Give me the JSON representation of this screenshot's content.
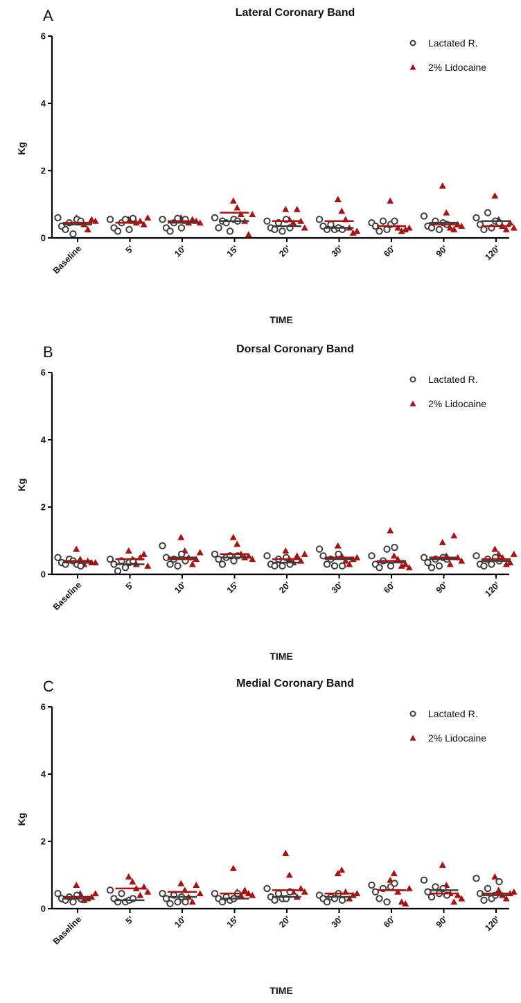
{
  "colors": {
    "lactated": "#3d3d3d",
    "lidocaine": "#aa1111",
    "axis": "#000000"
  },
  "chart_data": [
    {
      "type": "scatter",
      "panel_letter": "A",
      "title": "Lateral Coronary Band",
      "xlabel": "TIME",
      "ylabel": "Kg",
      "ylim": [
        0,
        6
      ],
      "yticks": [
        "0",
        "2",
        "4",
        "6"
      ],
      "categories": [
        "Baseline",
        "5'",
        "10'",
        "15'",
        "20'",
        "30'",
        "60'",
        "90'",
        "120'"
      ],
      "legend": {
        "position": "top-right",
        "marker_circle": "circle-icon",
        "marker_triangle": "triangle-icon"
      },
      "series": [
        {
          "name": "Lactated R.",
          "marker": "open-circle",
          "means": [
            0.4,
            0.45,
            0.45,
            0.5,
            0.35,
            0.3,
            0.35,
            0.45,
            0.5
          ],
          "points": [
            [
              0.6,
              0.35,
              0.25,
              0.45,
              0.12,
              0.55,
              0.5
            ],
            [
              0.55,
              0.3,
              0.2,
              0.45,
              0.55,
              0.25,
              0.58
            ],
            [
              0.55,
              0.3,
              0.2,
              0.45,
              0.58,
              0.3,
              0.55
            ],
            [
              0.6,
              0.3,
              0.5,
              0.45,
              0.2,
              0.55,
              0.5
            ],
            [
              0.5,
              0.3,
              0.25,
              0.45,
              0.2,
              0.55,
              0.3
            ],
            [
              0.55,
              0.35,
              0.25,
              0.4,
              0.25,
              0.3,
              0.25
            ],
            [
              0.45,
              0.35,
              0.2,
              0.5,
              0.25,
              0.4,
              0.5
            ],
            [
              0.65,
              0.35,
              0.3,
              0.5,
              0.25,
              0.45,
              0.4
            ],
            [
              0.6,
              0.4,
              0.25,
              0.75,
              0.3,
              0.5,
              0.45
            ]
          ]
        },
        {
          "name": "2% Lidocaine",
          "marker": "filled-triangle",
          "means": [
            0.45,
            0.45,
            0.5,
            0.75,
            0.5,
            0.5,
            0.35,
            0.4,
            0.35
          ],
          "points": [
            [
              0.6,
              0.45,
              0.4,
              0.25,
              0.55,
              0.5
            ],
            [
              0.55,
              0.5,
              0.45,
              0.5,
              0.4,
              0.6
            ],
            [
              0.6,
              0.5,
              0.45,
              0.55,
              0.5,
              0.45
            ],
            [
              1.1,
              0.9,
              0.7,
              0.5,
              0.1,
              0.7
            ],
            [
              0.85,
              0.55,
              0.45,
              0.85,
              0.5,
              0.3
            ],
            [
              1.15,
              0.8,
              0.55,
              0.3,
              0.15,
              0.2
            ],
            [
              1.1,
              0.5,
              0.3,
              0.2,
              0.25,
              0.3
            ],
            [
              1.55,
              0.75,
              0.3,
              0.25,
              0.4,
              0.35
            ],
            [
              1.25,
              0.55,
              0.35,
              0.25,
              0.45,
              0.3
            ]
          ]
        }
      ]
    },
    {
      "type": "scatter",
      "panel_letter": "B",
      "title": "Dorsal Coronary Band",
      "xlabel": "TIME",
      "ylabel": "Kg",
      "ylim": [
        0,
        6
      ],
      "yticks": [
        "0",
        "2",
        "4",
        "6"
      ],
      "categories": [
        "Baseline",
        "5'",
        "10'",
        "15'",
        "20'",
        "30'",
        "60'",
        "90'",
        "120'"
      ],
      "legend": {
        "position": "top-right",
        "marker_circle": "circle-icon",
        "marker_triangle": "triangle-icon"
      },
      "series": [
        {
          "name": "Lactated R.",
          "marker": "open-circle",
          "means": [
            0.35,
            0.3,
            0.5,
            0.5,
            0.35,
            0.45,
            0.35,
            0.45,
            0.4
          ],
          "points": [
            [
              0.5,
              0.35,
              0.3,
              0.45,
              0.4,
              0.3,
              0.25
            ],
            [
              0.45,
              0.3,
              0.1,
              0.4,
              0.2,
              0.35,
              0.4
            ],
            [
              0.85,
              0.5,
              0.3,
              0.45,
              0.25,
              0.6,
              0.4
            ],
            [
              0.6,
              0.45,
              0.3,
              0.5,
              0.55,
              0.4,
              0.55
            ],
            [
              0.55,
              0.3,
              0.25,
              0.45,
              0.25,
              0.5,
              0.3
            ],
            [
              0.75,
              0.55,
              0.3,
              0.45,
              0.25,
              0.6,
              0.25
            ],
            [
              0.55,
              0.3,
              0.2,
              0.4,
              0.75,
              0.25,
              0.8
            ],
            [
              0.5,
              0.35,
              0.2,
              0.45,
              0.25,
              0.5,
              0.45
            ],
            [
              0.55,
              0.3,
              0.25,
              0.45,
              0.3,
              0.5,
              0.4
            ]
          ]
        },
        {
          "name": "2% Lidocaine",
          "marker": "filled-triangle",
          "means": [
            0.4,
            0.45,
            0.45,
            0.6,
            0.45,
            0.5,
            0.4,
            0.5,
            0.45
          ],
          "points": [
            [
              0.75,
              0.45,
              0.3,
              0.4,
              0.35,
              0.35
            ],
            [
              0.7,
              0.45,
              0.3,
              0.5,
              0.6,
              0.25
            ],
            [
              1.1,
              0.7,
              0.5,
              0.3,
              0.45,
              0.65
            ],
            [
              1.1,
              0.9,
              0.6,
              0.5,
              0.55,
              0.45
            ],
            [
              0.7,
              0.45,
              0.35,
              0.55,
              0.4,
              0.6
            ],
            [
              0.85,
              0.55,
              0.4,
              0.3,
              0.45,
              0.5
            ],
            [
              1.3,
              0.55,
              0.45,
              0.25,
              0.3,
              0.2
            ],
            [
              0.95,
              0.55,
              0.3,
              1.15,
              0.5,
              0.4
            ],
            [
              0.75,
              0.6,
              0.5,
              0.3,
              0.35,
              0.6
            ]
          ]
        }
      ]
    },
    {
      "type": "scatter",
      "panel_letter": "C",
      "title": "Medial Coronary Band",
      "xlabel": "TIME",
      "ylabel": "Kg",
      "ylim": [
        0,
        6
      ],
      "yticks": [
        "0",
        "2",
        "4",
        "6"
      ],
      "categories": [
        "Baseline",
        "5'",
        "10'",
        "15'",
        "20'",
        "30'",
        "60'",
        "90'",
        "120'"
      ],
      "legend": {
        "position": "top-right",
        "marker_circle": "circle-icon",
        "marker_triangle": "triangle-icon"
      },
      "series": [
        {
          "name": "Lactated R.",
          "marker": "open-circle",
          "means": [
            0.3,
            0.25,
            0.35,
            0.3,
            0.35,
            0.35,
            0.55,
            0.55,
            0.4
          ],
          "points": [
            [
              0.45,
              0.3,
              0.25,
              0.35,
              0.2,
              0.4,
              0.3
            ],
            [
              0.55,
              0.3,
              0.2,
              0.45,
              0.2,
              0.25,
              0.3
            ],
            [
              0.45,
              0.3,
              0.15,
              0.4,
              0.2,
              0.35,
              0.2
            ],
            [
              0.45,
              0.3,
              0.2,
              0.35,
              0.25,
              0.3,
              0.45
            ],
            [
              0.6,
              0.35,
              0.25,
              0.45,
              0.3,
              0.3,
              0.5
            ],
            [
              0.4,
              0.3,
              0.2,
              0.35,
              0.3,
              0.45,
              0.25
            ],
            [
              0.7,
              0.5,
              0.3,
              0.6,
              0.2,
              0.65,
              0.75
            ],
            [
              0.85,
              0.5,
              0.35,
              0.65,
              0.45,
              0.6,
              0.4
            ],
            [
              0.9,
              0.45,
              0.25,
              0.6,
              0.3,
              0.4,
              0.8
            ]
          ]
        },
        {
          "name": "2% Lidocaine",
          "marker": "filled-triangle",
          "means": [
            0.35,
            0.6,
            0.5,
            0.45,
            0.55,
            0.45,
            0.55,
            0.45,
            0.45
          ],
          "points": [
            [
              0.7,
              0.45,
              0.25,
              0.3,
              0.35,
              0.45
            ],
            [
              0.95,
              0.8,
              0.6,
              0.4,
              0.65,
              0.5
            ],
            [
              0.75,
              0.55,
              0.35,
              0.2,
              0.7,
              0.45
            ],
            [
              1.2,
              0.5,
              0.4,
              0.55,
              0.45,
              0.4
            ],
            [
              1.65,
              1.0,
              0.5,
              0.35,
              0.6,
              0.5
            ],
            [
              1.05,
              1.15,
              0.5,
              0.3,
              0.4,
              0.45
            ],
            [
              0.85,
              1.05,
              0.5,
              0.2,
              0.15,
              0.6
            ],
            [
              1.3,
              0.7,
              0.45,
              0.2,
              0.4,
              0.3
            ],
            [
              0.95,
              0.55,
              0.4,
              0.3,
              0.45,
              0.5
            ]
          ]
        }
      ]
    }
  ]
}
